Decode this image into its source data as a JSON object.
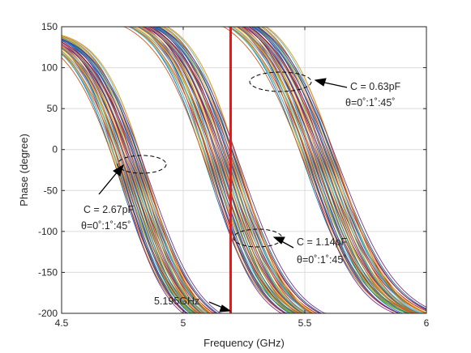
{
  "chart_data": {
    "type": "line",
    "xlabel": "Frequency (GHz)",
    "ylabel": "Phase (degree)",
    "xlim": [
      4.5,
      6
    ],
    "ylim": [
      -200,
      150
    ],
    "xticks": [
      4.5,
      5,
      5.5,
      6
    ],
    "xtick_labels": [
      "4.5",
      "5",
      "5.5",
      "6"
    ],
    "yticks": [
      -200,
      -150,
      -100,
      -50,
      0,
      50,
      100,
      150
    ],
    "ytick_labels": [
      "-200",
      "-150",
      "-100",
      "-50",
      "0",
      "50",
      "100",
      "150"
    ],
    "grid": true,
    "vertical_marker": {
      "x": 5.195,
      "label": "5.195GHz",
      "color": "#e8191b"
    },
    "groups": [
      {
        "capacitance": "C = 2.67pF",
        "theta": "θ=0˚:1˚:45˚",
        "curve_count": 46,
        "center_frequency_range_ghz": [
          4.74,
          4.86
        ],
        "phase_start_deg": 120,
        "phase_end_deg": -195
      },
      {
        "capacitance": "C = 1.14pF",
        "theta": "θ=0˚:1˚:45˚",
        "curve_count": 46,
        "center_frequency_range_ghz": [
          5.1,
          5.24
        ],
        "phase_start_deg": 140,
        "phase_end_deg": -190
      },
      {
        "capacitance": "C = 0.63pF",
        "theta": "θ=0˚:1˚:45˚",
        "curve_count": 46,
        "center_frequency_range_ghz": [
          5.5,
          5.64
        ],
        "phase_start_deg": 147,
        "phase_end_deg": -185
      }
    ],
    "series_colors": [
      "#0072bd",
      "#d95319",
      "#edb120",
      "#7e2f8e",
      "#77ac30",
      "#4dbeee",
      "#a2142f"
    ]
  }
}
